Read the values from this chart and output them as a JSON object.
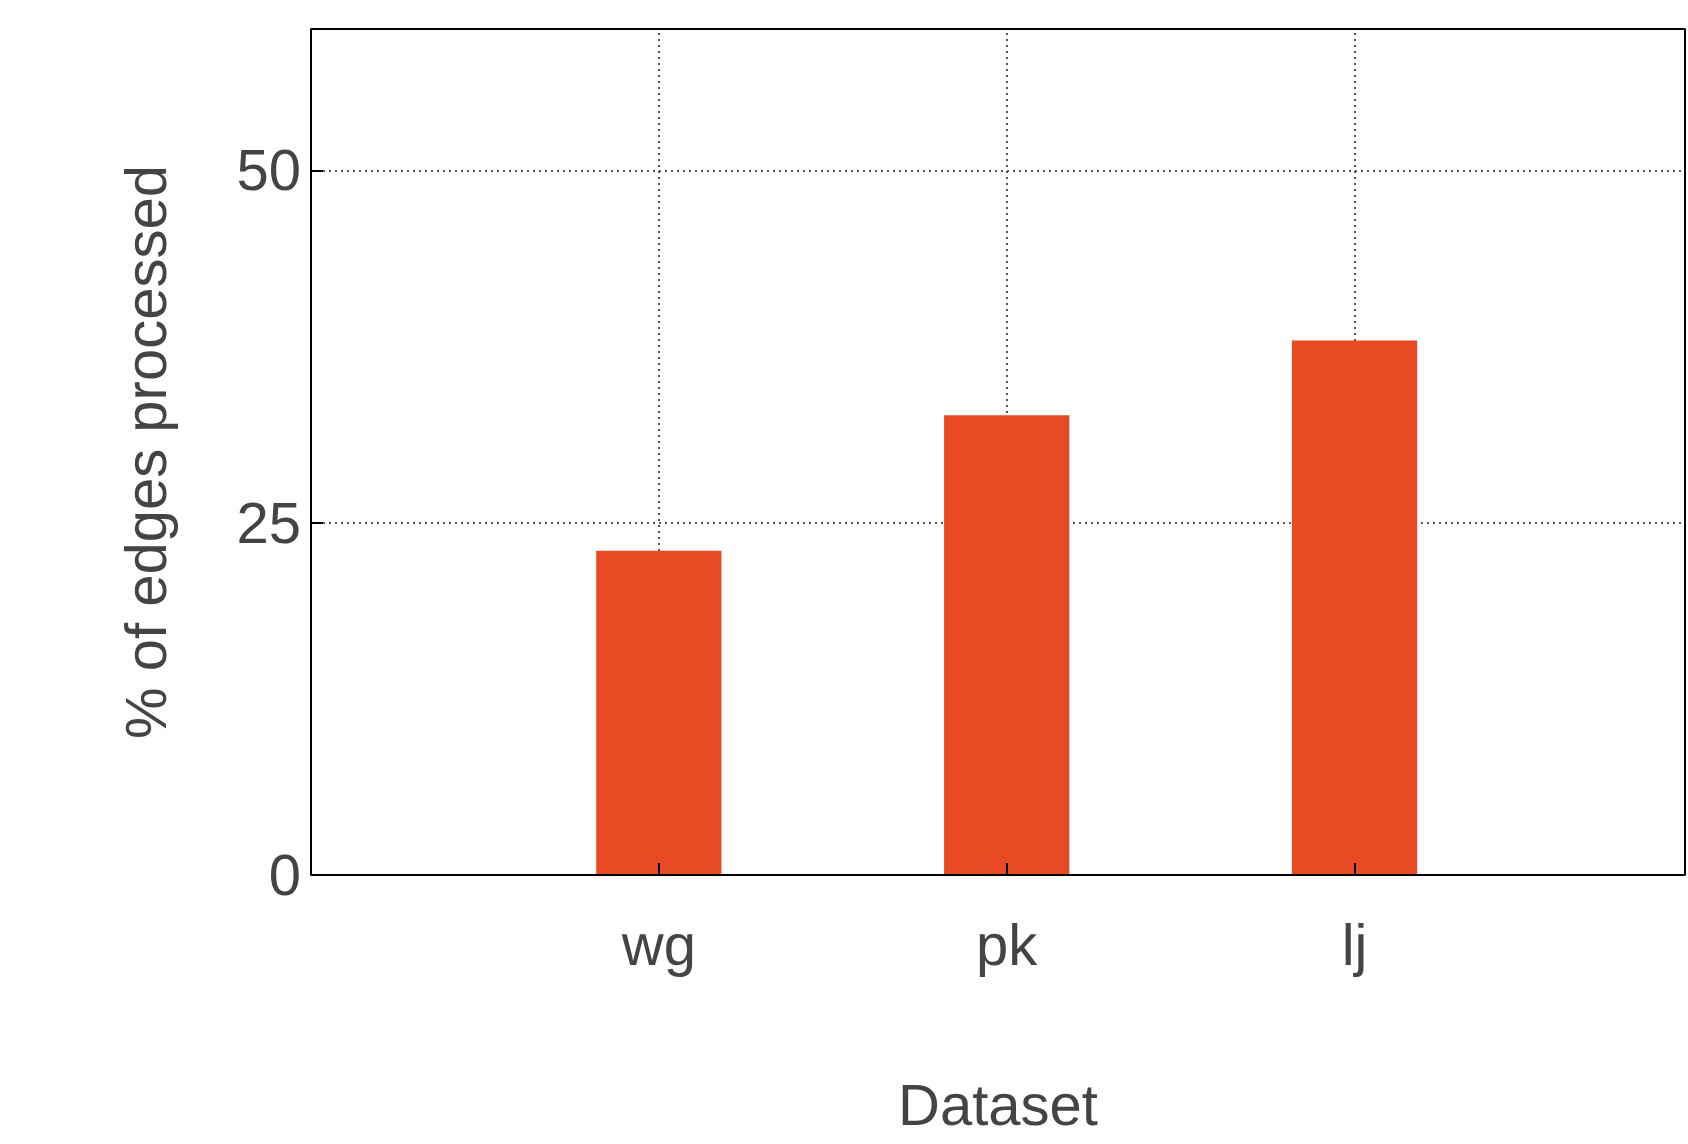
{
  "chart_data": {
    "type": "bar",
    "xlabel": "Dataset",
    "ylabel": "% of edges processed",
    "categories": [
      "wg",
      "pk",
      "lj"
    ],
    "values": [
      23,
      32.6,
      37.9
    ],
    "color": "#e84a23",
    "ylim": [
      0,
      60
    ],
    "yticks": [
      0,
      25,
      50
    ],
    "grid": true
  }
}
